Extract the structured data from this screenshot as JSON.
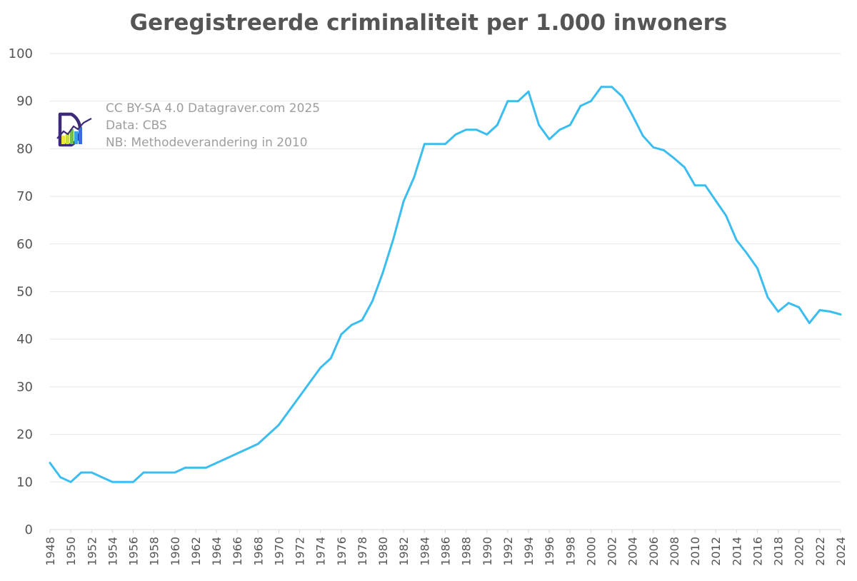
{
  "chart_data": {
    "type": "line",
    "title": "Geregistreerde criminaliteit per 1.000 inwoners",
    "xlabel": "",
    "ylabel": "",
    "xlim": [
      1948,
      2024
    ],
    "ylim": [
      0,
      100
    ],
    "yticks": [
      0,
      10,
      20,
      30,
      40,
      50,
      60,
      70,
      80,
      90,
      100
    ],
    "xticks": [
      1948,
      1950,
      1952,
      1954,
      1956,
      1958,
      1960,
      1962,
      1964,
      1966,
      1968,
      1970,
      1972,
      1974,
      1976,
      1978,
      1980,
      1982,
      1984,
      1986,
      1988,
      1990,
      1992,
      1994,
      1996,
      1998,
      2000,
      2002,
      2004,
      2006,
      2008,
      2010,
      2012,
      2014,
      2016,
      2018,
      2020,
      2022,
      2024
    ],
    "grid": true,
    "legend": "none",
    "series": [
      {
        "name": "Geregistreerde criminaliteit per 1.000 inwoners",
        "color": "#3bbdf0",
        "x": [
          1948,
          1949,
          1950,
          1951,
          1952,
          1953,
          1954,
          1955,
          1956,
          1957,
          1958,
          1959,
          1960,
          1961,
          1962,
          1963,
          1964,
          1965,
          1966,
          1967,
          1968,
          1969,
          1970,
          1971,
          1972,
          1973,
          1974,
          1975,
          1976,
          1977,
          1978,
          1979,
          1980,
          1981,
          1982,
          1983,
          1984,
          1985,
          1986,
          1987,
          1988,
          1989,
          1990,
          1991,
          1992,
          1993,
          1994,
          1995,
          1996,
          1997,
          1998,
          1999,
          2000,
          2001,
          2002,
          2003,
          2004,
          2005,
          2006,
          2007,
          2008,
          2009,
          2010,
          2011,
          2012,
          2013,
          2014,
          2015,
          2016,
          2017,
          2018,
          2019,
          2020,
          2021,
          2022,
          2023,
          2024
        ],
        "values": [
          14,
          11,
          10,
          12,
          12,
          11,
          10,
          10,
          10,
          12,
          12,
          12,
          12,
          13,
          13,
          13,
          14,
          15,
          16,
          17,
          18,
          20,
          22,
          25,
          28,
          31,
          34,
          36,
          41,
          43,
          44,
          48,
          54,
          61,
          69,
          74,
          81,
          81,
          81,
          83,
          84,
          84,
          83,
          85,
          90,
          90,
          92,
          85,
          82,
          84,
          85,
          89,
          90,
          93,
          93,
          91,
          87,
          82.7,
          80.3,
          79.7,
          78,
          76.1,
          72.3,
          72.3,
          69.1,
          65.9,
          60.8,
          58,
          54.9,
          48.8,
          45.8,
          47.6,
          46.7,
          43.4,
          46.1,
          45.8,
          45.2
        ]
      }
    ]
  },
  "annotations": {
    "license": "CC BY-SA 4.0 Datagraver.com 2025",
    "source": "Data: CBS",
    "note": "NB: Methodeverandering in 2010"
  },
  "colors": {
    "line": "#3bbdf0",
    "grid": "#e6e6e6",
    "text": "#555555",
    "annotation": "#9e9e9e",
    "logo_outline": "#3d2a78"
  },
  "icons": {
    "logo": "datagraver-logo-icon"
  }
}
